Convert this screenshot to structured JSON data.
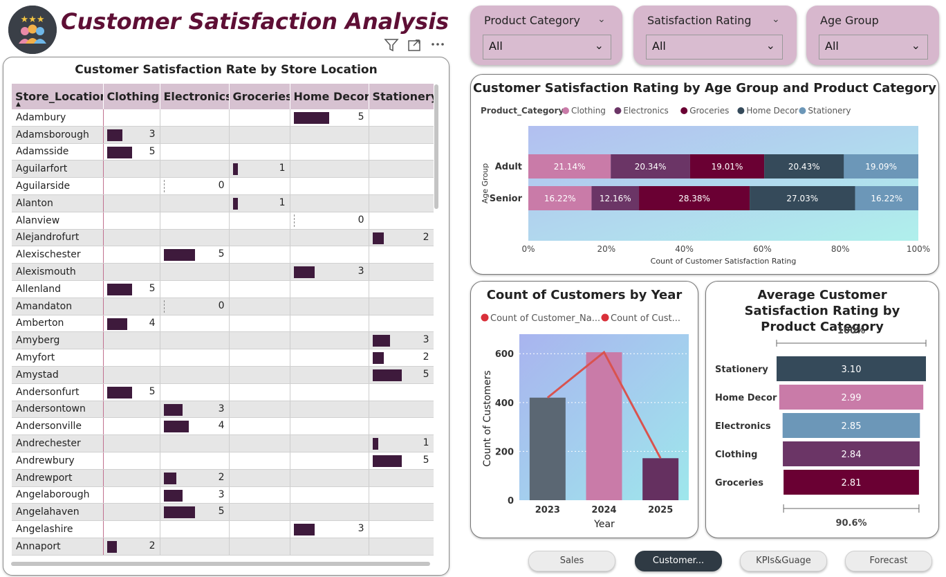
{
  "header": {
    "title": "Customer Satisfaction Analysis",
    "logo_icon": "customers-rating-icon"
  },
  "table": {
    "title": "Customer Satisfaction Rate by Store Location",
    "columns": [
      "Store_Location",
      "Clothing",
      "Electronics",
      "Groceries",
      "Home Decor",
      "Stationery"
    ],
    "bar_max": 5,
    "rows": [
      {
        "location": "Adambury",
        "values": [
          null,
          null,
          null,
          5,
          null
        ]
      },
      {
        "location": "Adamsborough",
        "values": [
          3,
          null,
          null,
          null,
          null
        ]
      },
      {
        "location": "Adamsside",
        "values": [
          5,
          null,
          null,
          null,
          null
        ]
      },
      {
        "location": "Aguilarfort",
        "values": [
          null,
          null,
          1,
          null,
          null
        ]
      },
      {
        "location": "Aguilarside",
        "values": [
          null,
          0,
          null,
          null,
          null
        ]
      },
      {
        "location": "Alanton",
        "values": [
          null,
          null,
          1,
          null,
          null
        ]
      },
      {
        "location": "Alanview",
        "values": [
          null,
          null,
          null,
          0,
          null
        ]
      },
      {
        "location": "Alejandrofurt",
        "values": [
          null,
          null,
          null,
          null,
          2
        ]
      },
      {
        "location": "Alexischester",
        "values": [
          null,
          5,
          null,
          null,
          null
        ]
      },
      {
        "location": "Alexismouth",
        "values": [
          null,
          null,
          null,
          3,
          null
        ]
      },
      {
        "location": "Allenland",
        "values": [
          5,
          null,
          null,
          null,
          null
        ]
      },
      {
        "location": "Amandaton",
        "values": [
          null,
          0,
          null,
          null,
          null
        ]
      },
      {
        "location": "Amberton",
        "values": [
          4,
          null,
          null,
          null,
          null
        ]
      },
      {
        "location": "Amyberg",
        "values": [
          null,
          null,
          null,
          null,
          3
        ]
      },
      {
        "location": "Amyfort",
        "values": [
          null,
          null,
          null,
          null,
          2
        ]
      },
      {
        "location": "Amystad",
        "values": [
          null,
          null,
          null,
          null,
          5
        ]
      },
      {
        "location": "Andersonfurt",
        "values": [
          5,
          null,
          null,
          null,
          null
        ]
      },
      {
        "location": "Andersontown",
        "values": [
          null,
          3,
          null,
          null,
          null
        ]
      },
      {
        "location": "Andersonville",
        "values": [
          null,
          4,
          null,
          null,
          null
        ]
      },
      {
        "location": "Andrechester",
        "values": [
          null,
          null,
          null,
          null,
          1
        ]
      },
      {
        "location": "Andrewbury",
        "values": [
          null,
          null,
          null,
          null,
          5
        ]
      },
      {
        "location": "Andrewport",
        "values": [
          null,
          2,
          null,
          null,
          null
        ]
      },
      {
        "location": "Angelaborough",
        "values": [
          null,
          3,
          null,
          null,
          null
        ]
      },
      {
        "location": "Angelahaven",
        "values": [
          null,
          5,
          null,
          null,
          null
        ]
      },
      {
        "location": "Angelashire",
        "values": [
          null,
          null,
          null,
          3,
          null
        ]
      },
      {
        "location": "Annaport",
        "values": [
          2,
          null,
          null,
          null,
          null
        ]
      }
    ]
  },
  "slicers": [
    {
      "label": "Product Category",
      "value": "All"
    },
    {
      "label": "Satisfaction Rating",
      "value": "All"
    },
    {
      "label": "Age Group",
      "value": "All"
    }
  ],
  "nav": {
    "buttons": [
      "Sales",
      "Customer...",
      "KPIs&Guage",
      "Forecast"
    ],
    "active": 1
  },
  "chart_data": [
    {
      "type": "bar",
      "orientation": "horizontal-100%-stacked",
      "title": "Customer Satisfaction Rating by Age Group and Product Category",
      "legend_title": "Product_Category",
      "legend_position": "top-left",
      "categories": [
        "Adult",
        "Senior"
      ],
      "ylabel": "Age Group",
      "xlabel": "Count of Customer Satisfaction Rating",
      "xticks": [
        "0%",
        "20%",
        "40%",
        "60%",
        "80%",
        "100%"
      ],
      "series": [
        {
          "name": "Clothing",
          "color": "#c97ba8",
          "values": [
            21.14,
            16.22
          ],
          "labels": [
            "21.14%",
            "16.22%"
          ]
        },
        {
          "name": "Electronics",
          "color": "#6b3566",
          "values": [
            20.34,
            12.16
          ],
          "labels": [
            "20.34%",
            "12.16%"
          ]
        },
        {
          "name": "Groceries",
          "color": "#6a0033",
          "values": [
            19.01,
            28.38
          ],
          "labels": [
            "19.01%",
            "28.38%"
          ]
        },
        {
          "name": "Home Decor",
          "color": "#354a5a",
          "values": [
            20.43,
            27.03
          ],
          "labels": [
            "20.43%",
            "27.03%"
          ]
        },
        {
          "name": "Stationery",
          "color": "#6c97b8",
          "values": [
            19.09,
            16.22
          ],
          "labels": [
            "19.09%",
            "16.22%"
          ]
        }
      ]
    },
    {
      "type": "bar",
      "title": "Count of Customers by Year",
      "legend": [
        "Count of Customer_Na...",
        "Count of Cust..."
      ],
      "legend_position": "top-left",
      "categories": [
        "2023",
        "2024",
        "2025"
      ],
      "xlabel": "Year",
      "ylabel": "Count of Customers",
      "ylim": [
        0,
        680
      ],
      "yticks": [
        0,
        200,
        400,
        600
      ],
      "grid": true,
      "series": [
        {
          "name": "Count of Customer_Na...",
          "kind": "bar",
          "values": [
            420,
            606,
            172
          ],
          "colors": [
            "#5b6773",
            "#c97ba8",
            "#653060"
          ]
        },
        {
          "name": "Count of Cust...",
          "kind": "line",
          "color": "#d9534f",
          "values": [
            420,
            606,
            172
          ]
        }
      ]
    },
    {
      "type": "bar",
      "orientation": "horizontal",
      "title": "Average Customer Satisfaction Rating by Product Category",
      "top_label": "100%",
      "bottom_label": "90.6%",
      "categories": [
        "Stationery",
        "Home Decor",
        "Electronics",
        "Clothing",
        "Groceries"
      ],
      "values": [
        3.1,
        2.99,
        2.85,
        2.84,
        2.81
      ],
      "labels": [
        "3.10",
        "2.99",
        "2.85",
        "2.84",
        "2.81"
      ],
      "colors": [
        "#354a5a",
        "#c97ba8",
        "#6c97b8",
        "#6b3566",
        "#6a0033"
      ]
    }
  ]
}
